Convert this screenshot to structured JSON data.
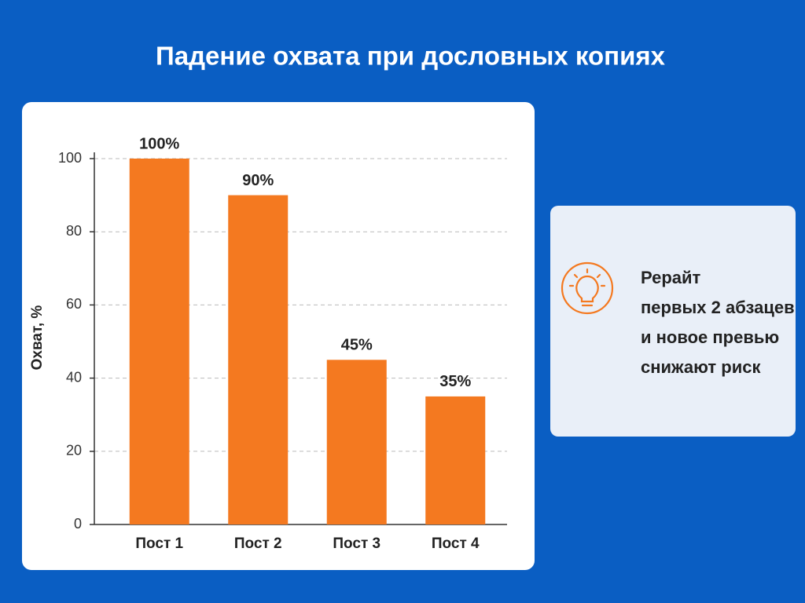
{
  "chart_data": {
    "type": "bar",
    "title": "Падение охвата при дословных копиях",
    "y_label": "Охват, %",
    "categories": [
      "Пост 1",
      "Пост 2",
      "Пост 3",
      "Пост 4"
    ],
    "values": [
      100,
      90,
      45,
      35
    ],
    "value_labels": [
      "100%",
      "90%",
      "45%",
      "35%"
    ],
    "color": "#f47920",
    "ylim": [
      0,
      100
    ],
    "yticks": [
      0,
      20,
      40,
      60,
      80,
      100
    ],
    "grid": true
  },
  "callout": [
    "Рерайт",
    "первых 2 абзацев",
    "и новое превью",
    "снижают риск"
  ]
}
